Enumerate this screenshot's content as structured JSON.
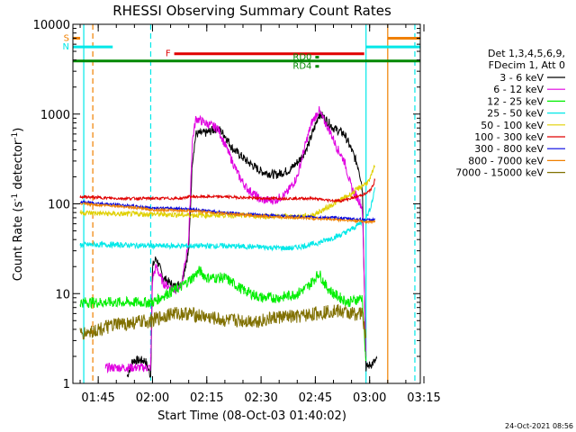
{
  "chart_data": {
    "type": "line",
    "title": "RHESSI Observing Summary Count Rates",
    "xlabel": "Start Time (08-Oct-03 01:40:02)",
    "ylabel_main": "Count Rate (s",
    "ylabel_sup1": "-1",
    "ylabel_mid": " detector",
    "ylabel_sup2": "-1",
    "ylabel_end": ")",
    "y_scale": "log",
    "ylim": [
      1,
      10000
    ],
    "xlim_minutes": [
      -2,
      94
    ],
    "x_ticks": [
      {
        "label": "01:45",
        "min": 5
      },
      {
        "label": "02:00",
        "min": 20
      },
      {
        "label": "02:15",
        "min": 35
      },
      {
        "label": "02:30",
        "min": 50
      },
      {
        "label": "02:45",
        "min": 65
      },
      {
        "label": "03:00",
        "min": 80
      },
      {
        "label": "03:15",
        "min": 95
      }
    ],
    "y_ticks": [
      {
        "label": "1",
        "value": 1
      },
      {
        "label": "10",
        "value": 10
      },
      {
        "label": "100",
        "value": 100
      },
      {
        "label": "1000",
        "value": 1000
      },
      {
        "label": "10000",
        "value": 10000
      }
    ],
    "legend": {
      "position": "right",
      "header1": "Det 1,3,4,5,6,9,",
      "header2": "FDecim 1, Att 0",
      "entries": [
        {
          "label": "3 - 6 keV",
          "color": "#000000"
        },
        {
          "label": "6 - 12 keV",
          "color": "#e000e0"
        },
        {
          "label": "12 - 25 keV",
          "color": "#00ee00"
        },
        {
          "label": "25 - 50 keV",
          "color": "#00e8e8"
        },
        {
          "label": "50 - 100 keV",
          "color": "#e0d000"
        },
        {
          "label": "100 - 300 keV",
          "color": "#e00000"
        },
        {
          "label": "300 - 800 keV",
          "color": "#0000e0"
        },
        {
          "label": "800 - 7000 keV",
          "color": "#f08000"
        },
        {
          "label": "7000 - 15000 keV",
          "color": "#807000"
        }
      ]
    },
    "flags": [
      {
        "label": "S",
        "color": "#f08000",
        "value": 7000,
        "start": -2,
        "end": 0
      },
      {
        "label": "",
        "color": "#f08000",
        "value": 7000,
        "start": 85,
        "end": 94
      },
      {
        "label": "N",
        "color": "#00e8e8",
        "value": 5600,
        "start": -2,
        "end": 9
      },
      {
        "label": "",
        "color": "#00e8e8",
        "value": 5600,
        "start": 79,
        "end": 94
      },
      {
        "label": "F",
        "color": "#e00000",
        "value": 4700,
        "start": 26,
        "end": 78.5
      },
      {
        "label": "RD0",
        "color": "#008800",
        "value": 4300,
        "start": 65,
        "end": 66
      },
      {
        "label": "",
        "color": "#008800",
        "value": 3900,
        "start": -2,
        "end": 94
      },
      {
        "label": "RD4",
        "color": "#008800",
        "value": 3400,
        "start": 65,
        "end": 66
      }
    ],
    "vlines": [
      {
        "color": "#00e8e8",
        "min": 1,
        "style": "solid"
      },
      {
        "color": "#f08000",
        "min": 3.5,
        "style": "dash"
      },
      {
        "color": "#00e8e8",
        "min": 19.5,
        "style": "dash"
      },
      {
        "color": "#00e8e8",
        "min": 79,
        "style": "solid"
      },
      {
        "color": "#f08000",
        "min": 85,
        "style": "solid"
      },
      {
        "color": "#00e8e8",
        "min": 92.5,
        "style": "dash"
      }
    ],
    "series": [
      {
        "color": "#000000",
        "noise": 0.05,
        "points": [
          [
            13,
            1.2
          ],
          [
            14.5,
            1.8
          ],
          [
            18,
            1.8
          ],
          [
            19.5,
            1.2
          ],
          [
            20,
            20
          ],
          [
            21,
            25
          ],
          [
            23,
            15
          ],
          [
            26,
            12
          ],
          [
            28,
            13
          ],
          [
            30,
            30
          ],
          [
            31,
            300
          ],
          [
            32,
            600
          ],
          [
            35,
            620
          ],
          [
            38,
            700
          ],
          [
            40,
            580
          ],
          [
            42,
            420
          ],
          [
            46,
            300
          ],
          [
            50,
            230
          ],
          [
            54,
            210
          ],
          [
            58,
            240
          ],
          [
            61,
            320
          ],
          [
            63,
            450
          ],
          [
            65,
            750
          ],
          [
            66,
            1000
          ],
          [
            67,
            950
          ],
          [
            70,
            700
          ],
          [
            73,
            600
          ],
          [
            75,
            400
          ],
          [
            77,
            250
          ],
          [
            78,
            150
          ],
          [
            79,
            1.5
          ],
          [
            80,
            1.6
          ],
          [
            82,
            1.8
          ]
        ]
      },
      {
        "color": "#e000e0",
        "noise": 0.05,
        "points": [
          [
            7,
            1.5
          ],
          [
            18,
            1.5
          ],
          [
            19.5,
            1.5
          ],
          [
            20,
            15
          ],
          [
            21,
            20
          ],
          [
            23,
            13
          ],
          [
            26,
            11
          ],
          [
            28,
            12
          ],
          [
            30,
            40
          ],
          [
            31,
            500
          ],
          [
            32,
            900
          ],
          [
            35,
            780
          ],
          [
            38,
            700
          ],
          [
            40,
            460
          ],
          [
            42,
            300
          ],
          [
            44,
            200
          ],
          [
            46,
            150
          ],
          [
            50,
            110
          ],
          [
            54,
            110
          ],
          [
            57,
            130
          ],
          [
            60,
            200
          ],
          [
            62,
            420
          ],
          [
            64,
            800
          ],
          [
            66,
            1100
          ],
          [
            67,
            900
          ],
          [
            69,
            650
          ],
          [
            71,
            420
          ],
          [
            73,
            300
          ],
          [
            75,
            150
          ],
          [
            77,
            110
          ],
          [
            78,
            90
          ],
          [
            79,
            2
          ]
        ]
      },
      {
        "color": "#00ee00",
        "noise": 0.06,
        "points": [
          [
            0,
            8
          ],
          [
            10,
            8
          ],
          [
            20,
            8
          ],
          [
            24,
            10
          ],
          [
            28,
            12
          ],
          [
            31,
            15
          ],
          [
            33,
            18
          ],
          [
            35,
            15
          ],
          [
            40,
            15
          ],
          [
            45,
            11
          ],
          [
            50,
            9
          ],
          [
            55,
            9
          ],
          [
            60,
            10
          ],
          [
            63,
            12
          ],
          [
            65,
            15
          ],
          [
            66,
            17
          ],
          [
            68,
            12
          ],
          [
            70,
            10
          ],
          [
            74,
            8
          ],
          [
            78,
            9
          ],
          [
            79,
            1.5
          ]
        ]
      },
      {
        "color": "#00e8e8",
        "noise": 0.03,
        "points": [
          [
            0,
            35
          ],
          [
            10,
            35
          ],
          [
            20,
            34
          ],
          [
            30,
            34
          ],
          [
            40,
            34
          ],
          [
            50,
            33
          ],
          [
            58,
            32
          ],
          [
            62,
            34
          ],
          [
            66,
            37
          ],
          [
            72,
            45
          ],
          [
            76,
            55
          ],
          [
            79,
            70
          ],
          [
            80,
            85
          ],
          [
            81,
            120
          ],
          [
            81.5,
            160
          ]
        ]
      },
      {
        "color": "#e0d000",
        "noise": 0.03,
        "points": [
          [
            0,
            80
          ],
          [
            10,
            77
          ],
          [
            20,
            77
          ],
          [
            30,
            75
          ],
          [
            40,
            75
          ],
          [
            50,
            73
          ],
          [
            60,
            72
          ],
          [
            64,
            74
          ],
          [
            67,
            85
          ],
          [
            71,
            105
          ],
          [
            75,
            130
          ],
          [
            78,
            160
          ],
          [
            79,
            170
          ],
          [
            80,
            180
          ],
          [
            81,
            240
          ],
          [
            81.5,
            270
          ]
        ]
      },
      {
        "color": "#e00000",
        "noise": 0.015,
        "points": [
          [
            0,
            120
          ],
          [
            10,
            115
          ],
          [
            20,
            115
          ],
          [
            28,
            115
          ],
          [
            30,
            120
          ],
          [
            40,
            120
          ],
          [
            50,
            115
          ],
          [
            60,
            115
          ],
          [
            64,
            115
          ],
          [
            68,
            110
          ],
          [
            72,
            108
          ],
          [
            76,
            118
          ],
          [
            79,
            130
          ],
          [
            80,
            140
          ],
          [
            81,
            160
          ],
          [
            81.5,
            190
          ]
        ]
      },
      {
        "color": "#0000e0",
        "noise": 0.015,
        "points": [
          [
            0,
            105
          ],
          [
            10,
            98
          ],
          [
            20,
            90
          ],
          [
            30,
            88
          ],
          [
            40,
            80
          ],
          [
            50,
            75
          ],
          [
            60,
            72
          ],
          [
            70,
            70
          ],
          [
            78,
            67
          ],
          [
            80,
            66
          ],
          [
            81.5,
            67
          ]
        ]
      },
      {
        "color": "#f08000",
        "noise": 0.015,
        "points": [
          [
            0,
            100
          ],
          [
            10,
            95
          ],
          [
            20,
            86
          ],
          [
            30,
            84
          ],
          [
            40,
            78
          ],
          [
            50,
            73
          ],
          [
            60,
            70
          ],
          [
            70,
            67
          ],
          [
            78,
            64
          ],
          [
            80,
            63
          ],
          [
            81.5,
            64
          ]
        ]
      },
      {
        "color": "#807000",
        "noise": 0.08,
        "points": [
          [
            0,
            3.5
          ],
          [
            10,
            4.5
          ],
          [
            20,
            5
          ],
          [
            25,
            6
          ],
          [
            30,
            6
          ],
          [
            40,
            5
          ],
          [
            45,
            5
          ],
          [
            50,
            5
          ],
          [
            55,
            5.5
          ],
          [
            60,
            5.5
          ],
          [
            65,
            6
          ],
          [
            70,
            6.5
          ],
          [
            75,
            6
          ],
          [
            78,
            6
          ],
          [
            79,
            3
          ]
        ]
      }
    ]
  },
  "footer": {
    "timestamp": "24-Oct-2021 08:56"
  }
}
